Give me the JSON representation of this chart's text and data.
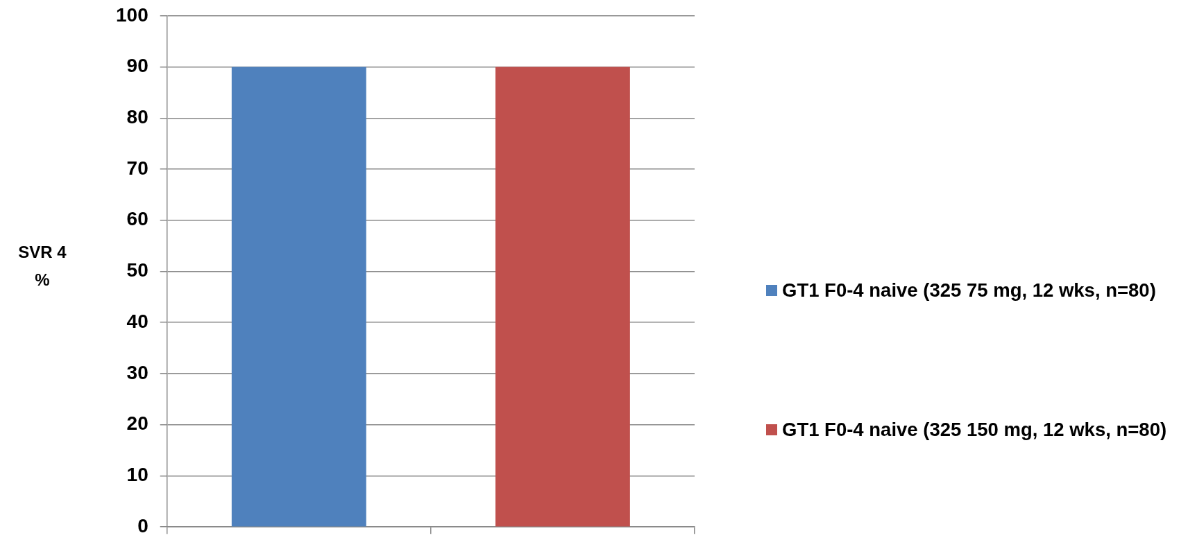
{
  "chart_data": {
    "type": "bar",
    "categories": [
      null,
      null
    ],
    "series": [
      {
        "name": "GT1 F0-4 naive (325 75 mg, 12 wks, n=80)",
        "color": "#4f81bd",
        "values": [
          90,
          null
        ]
      },
      {
        "name": "GT1 F0-4 naive (325 150 mg, 12 wks, n=80)",
        "color": "#c0504d",
        "values": [
          null,
          90
        ]
      }
    ],
    "ylabel": "SVR 4 %",
    "ylim": [
      0,
      100
    ],
    "yticks": [
      0,
      10,
      20,
      30,
      40,
      50,
      60,
      70,
      80,
      90,
      100
    ],
    "grid": "y",
    "legend": "right",
    "tick_labels": "y"
  }
}
